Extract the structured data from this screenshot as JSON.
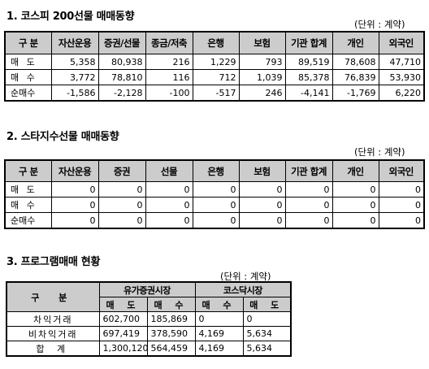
{
  "section1": {
    "title": "1. 코스피 200선물 매매동향",
    "unit": "(단위 : 계약)",
    "headers": [
      "구  분",
      "자산운용",
      "증권/선물",
      "종금/저축",
      "은행",
      "보험",
      "기관 합계",
      "개인",
      "외국인"
    ],
    "rows": [
      {
        "label": "매  도",
        "values": [
          "5,358",
          "80,938",
          "216",
          "1,229",
          "793",
          "89,519",
          "78,608",
          "47,710"
        ]
      },
      {
        "label": "매  수",
        "values": [
          "3,772",
          "78,810",
          "116",
          "712",
          "1,039",
          "85,378",
          "76,839",
          "53,930"
        ]
      },
      {
        "label": "순매수",
        "values": [
          "-1,586",
          "-2,128",
          "-100",
          "-517",
          "246",
          "-4,141",
          "-1,769",
          "6,220"
        ]
      }
    ]
  },
  "section2": {
    "title": "2. 스타지수선물 매매동향",
    "unit": "(단위 : 계약)",
    "headers": [
      "구  분",
      "자산운용",
      "증권",
      "선물",
      "은행",
      "보험",
      "기관 합계",
      "개인",
      "외국인"
    ],
    "rows": [
      {
        "label": "매  도",
        "values": [
          "0",
          "0",
          "0",
          "0",
          "0",
          "0",
          "0",
          "0"
        ]
      },
      {
        "label": "매  수",
        "values": [
          "0",
          "0",
          "0",
          "0",
          "0",
          "0",
          "0",
          "0"
        ]
      },
      {
        "label": "순매수",
        "values": [
          "0",
          "0",
          "0",
          "0",
          "0",
          "0",
          "0",
          "0"
        ]
      }
    ]
  },
  "section3": {
    "title": "3. 프로그램매매 현황",
    "unit": "(단위 : 계약)",
    "header_label": "구  분",
    "group1": "유가증권시장",
    "group2": "코스닥시장",
    "sub_headers": [
      "매  도",
      "매  수",
      "매  수",
      "매  도"
    ],
    "rows": [
      {
        "label": "차익거래",
        "values": [
          "602,700",
          "185,869",
          "0",
          "0"
        ]
      },
      {
        "label": "비차익거래",
        "values": [
          "697,419",
          "378,590",
          "4,169",
          "5,634"
        ]
      },
      {
        "label": "합  계",
        "values": [
          "1,300,120",
          "564,459",
          "4,169",
          "5,634"
        ]
      }
    ]
  }
}
